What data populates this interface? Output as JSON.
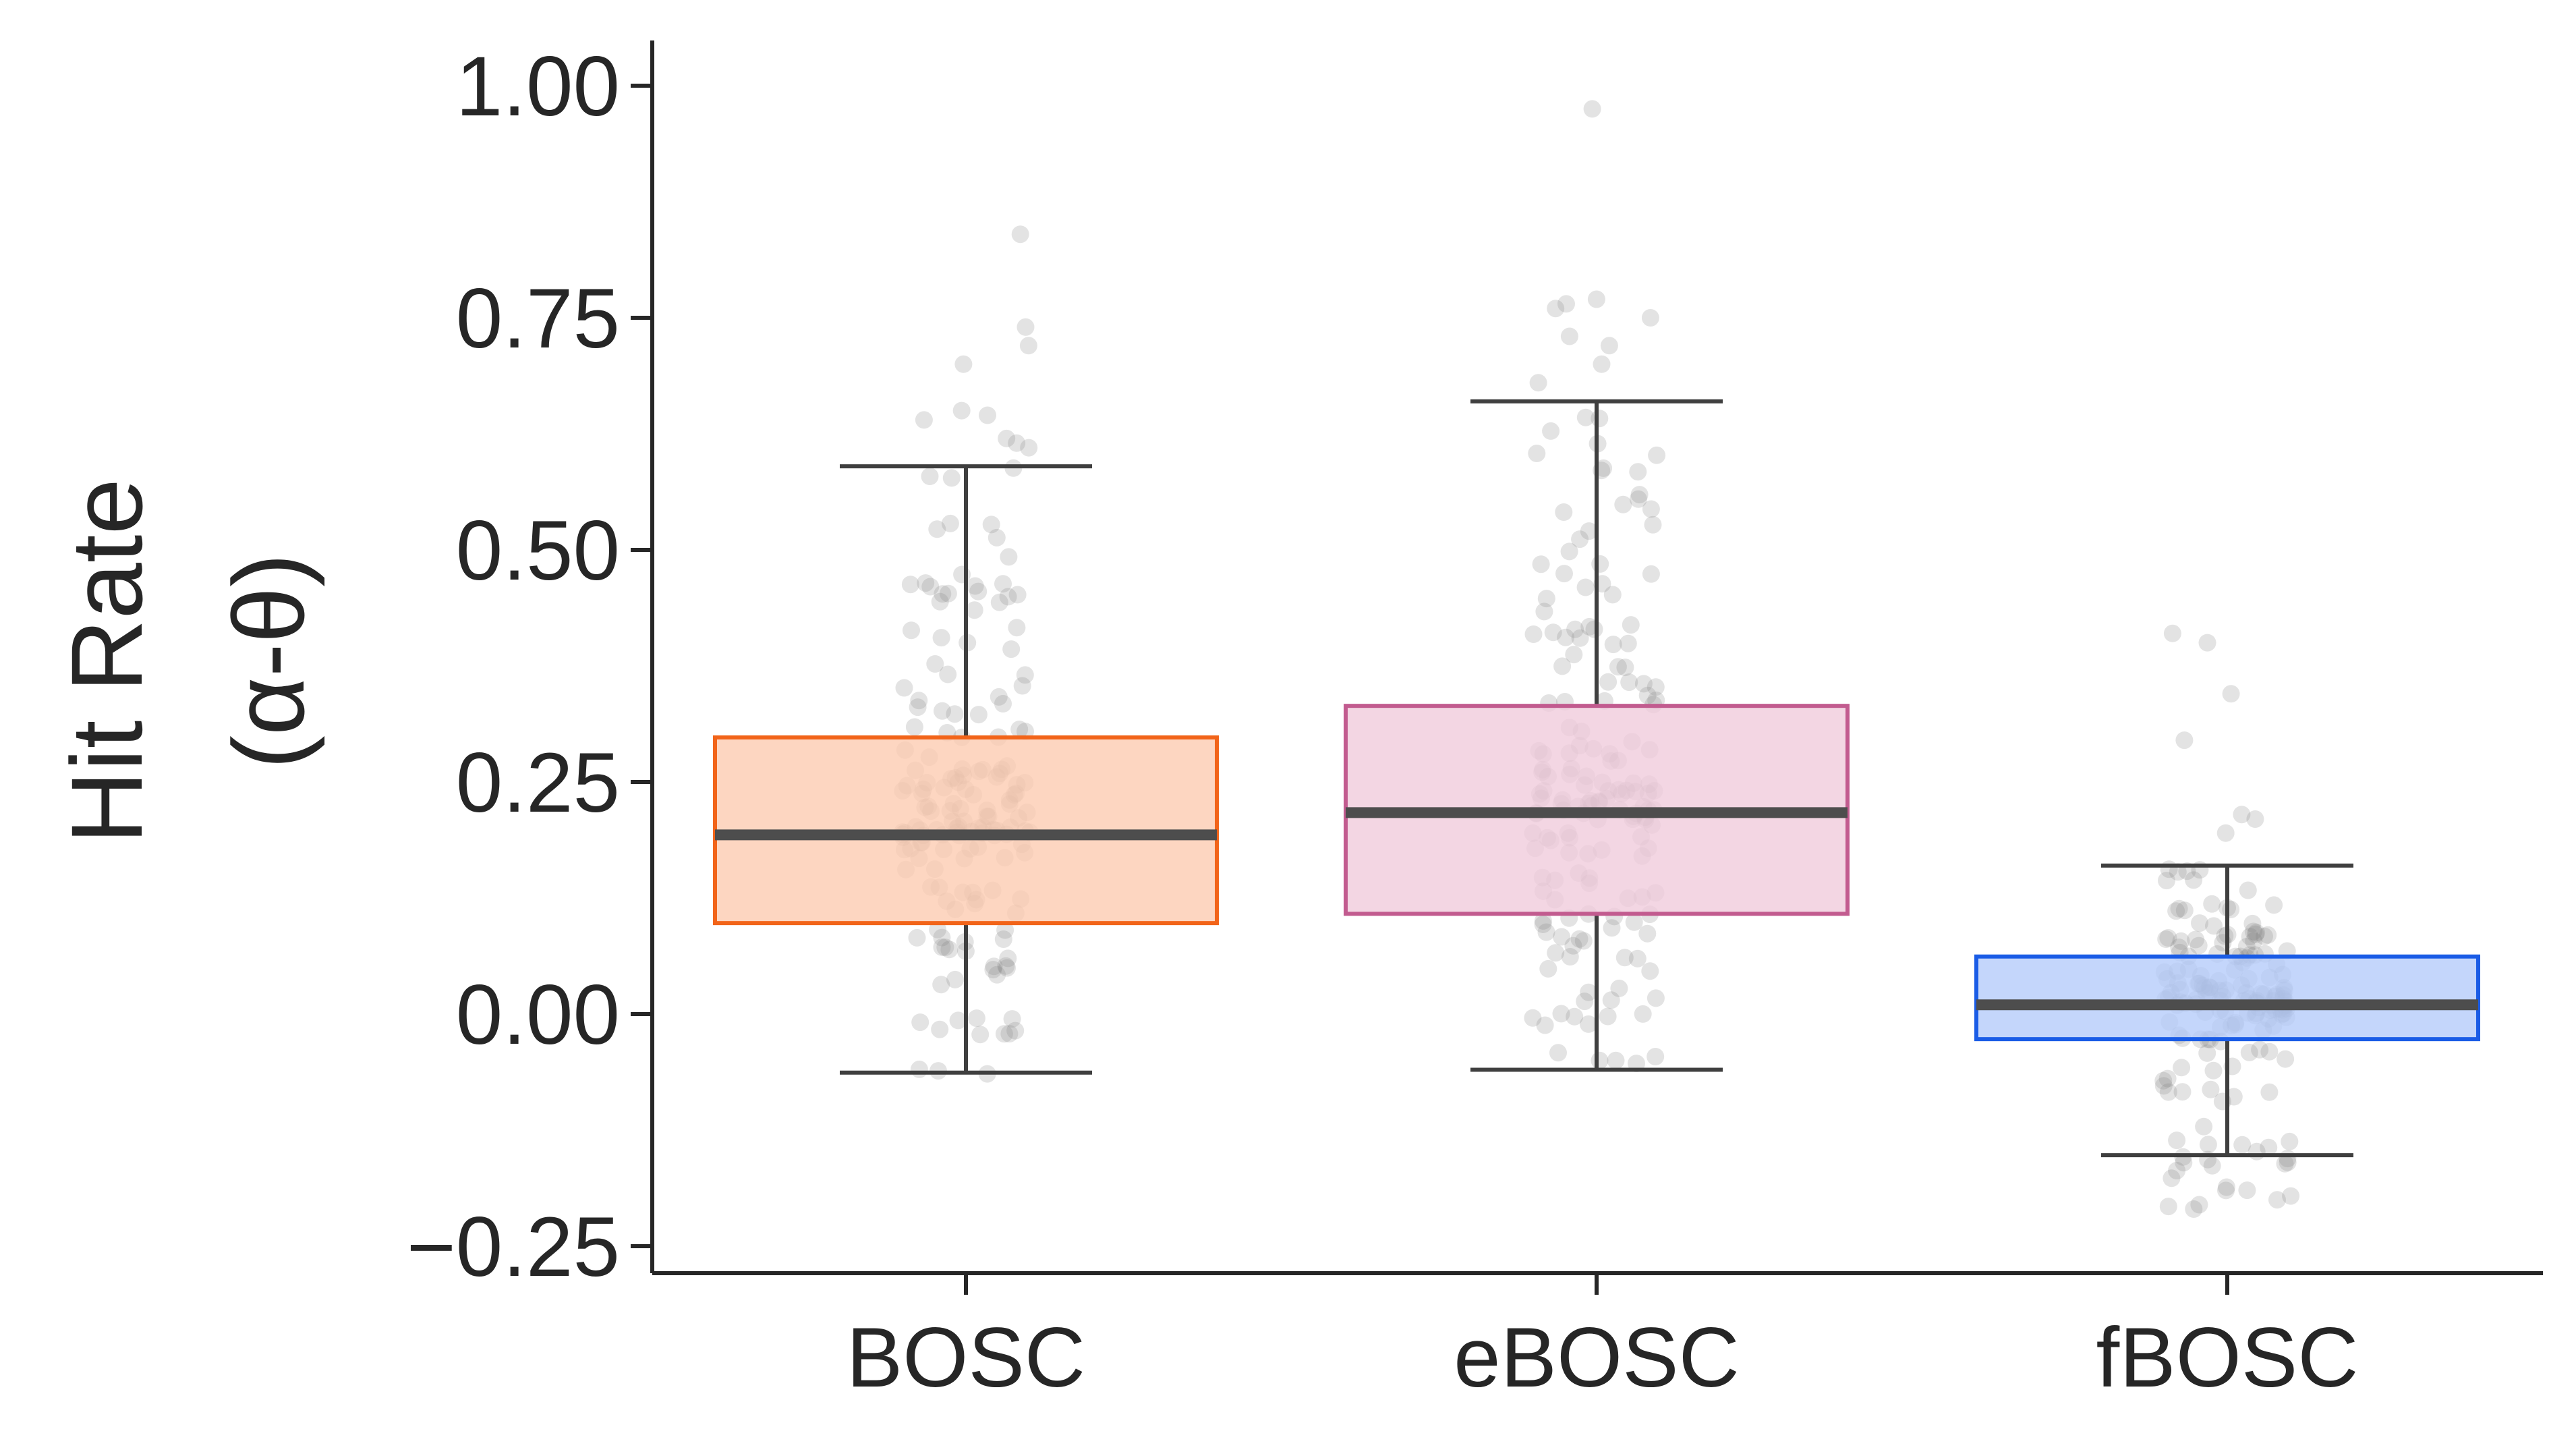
{
  "chart_data": {
    "type": "box",
    "ylabel": "Hit Rate",
    "ylabel_sub": "(α-θ)",
    "xlabel": "",
    "ylim": [
      -0.28,
      1.05
    ],
    "yticks": [
      -0.25,
      0.0,
      0.25,
      0.5,
      0.75,
      1.0
    ],
    "ytick_labels": [
      "−0.25",
      "0.00",
      "0.25",
      "0.50",
      "0.75",
      "1.00"
    ],
    "categories": [
      "BOSC",
      "eBOSC",
      "fBOSC"
    ],
    "boxes": [
      {
        "name": "BOSC",
        "whisker_low": -0.063,
        "q1": 0.098,
        "median": 0.193,
        "q3": 0.298,
        "whisker_high": 0.59,
        "fill": "#fdcbb0",
        "edge": "#f26419",
        "points_summary": {
          "count_approx": 175,
          "min": -0.065,
          "max": 0.84,
          "outliers": [
            0.61,
            0.615,
            0.62,
            0.64,
            0.645,
            0.65,
            0.7,
            0.72,
            0.74,
            0.84
          ]
        }
      },
      {
        "name": "eBOSC",
        "whisker_low": -0.06,
        "q1": 0.108,
        "median": 0.217,
        "q3": 0.332,
        "whisker_high": 0.66,
        "fill": "#efcadb",
        "edge": "#c25b8f",
        "points_summary": {
          "count_approx": 175,
          "min": -0.06,
          "max": 0.975,
          "outliers": [
            0.68,
            0.7,
            0.72,
            0.73,
            0.75,
            0.76,
            0.765,
            0.77,
            0.975
          ]
        }
      },
      {
        "name": "fBOSC",
        "whisker_low": -0.152,
        "q1": -0.027,
        "median": 0.01,
        "q3": 0.062,
        "whisker_high": 0.16,
        "fill": "#b3cbfa",
        "edge": "#1a5ce6",
        "points_summary": {
          "count_approx": 175,
          "min": -0.21,
          "max": 0.41,
          "outliers": [
            0.195,
            0.21,
            0.215,
            0.295,
            0.345,
            0.4,
            0.41,
            -0.16,
            -0.19,
            -0.2,
            -0.21
          ]
        }
      }
    ],
    "median_color": "#4d4d4d",
    "whisker_color": "#3f3f3f",
    "points_color": "#808080",
    "grid": false
  }
}
